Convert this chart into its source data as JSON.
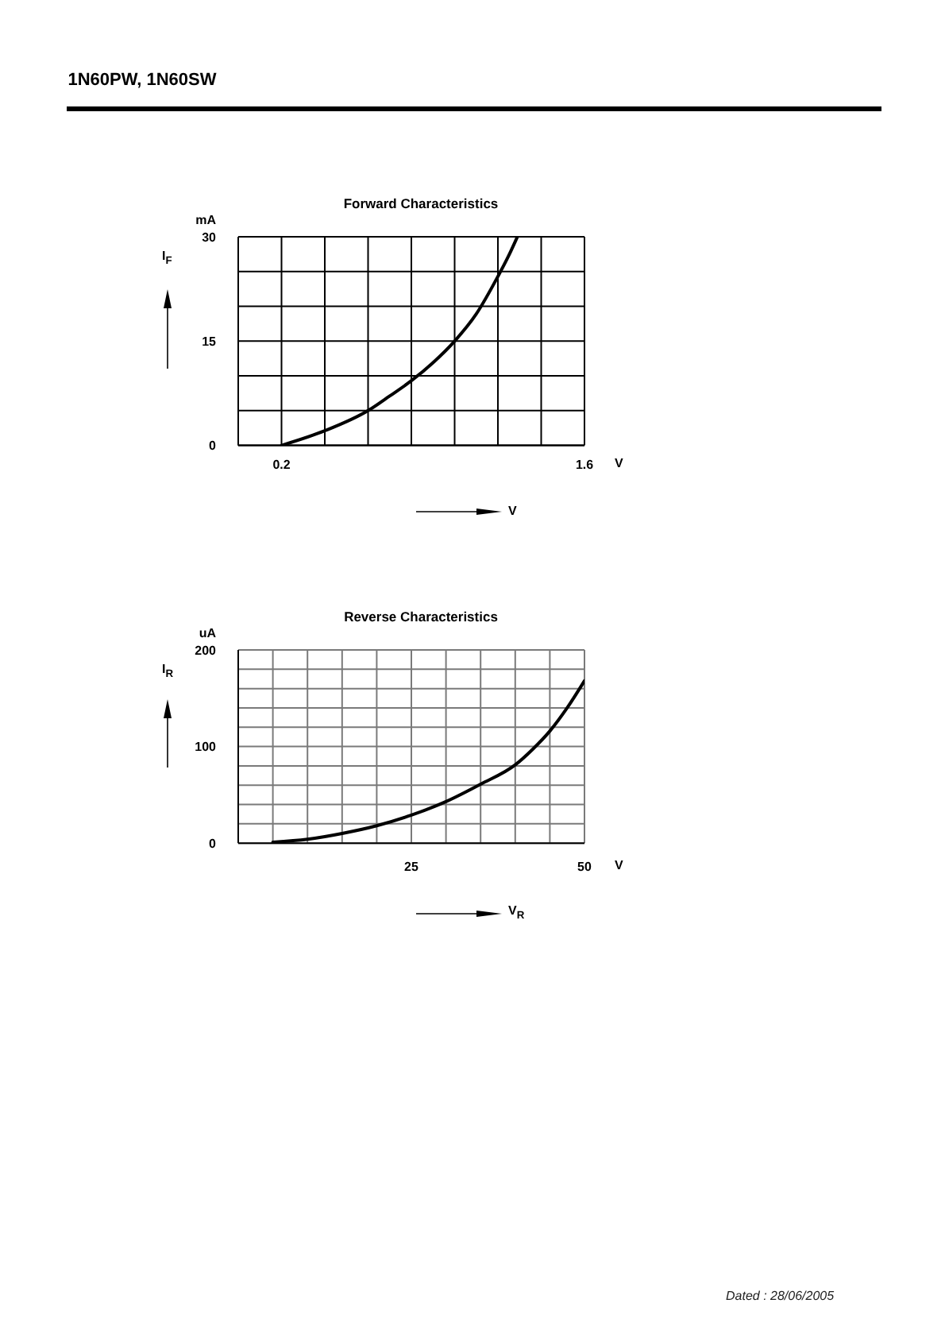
{
  "chart_data": [
    {
      "type": "line",
      "title": "Forward Characteristics",
      "xlabel": "V",
      "ylabel": "I$_{F}$",
      "annotations": [
        "1N60PW, 1N60SW",
        "mA",
        "V"
      ],
      "x": [
        0.2,
        0.4,
        0.6,
        0.7,
        0.8,
        0.9,
        1.0,
        1.1,
        1.2,
        1.25,
        1.29
      ],
      "series": [
        {
          "color": "#000000",
          "values": [
            0,
            2.1,
            5,
            7.1,
            9.3,
            11.9,
            15,
            18.9,
            24.3,
            27.3,
            30
          ]
        }
      ],
      "xlim": [
        0,
        1.6
      ],
      "xticks": [
        {
          "value": 0,
          "label": null
        },
        0.2,
        {
          "value": 0.4,
          "label": null
        },
        {
          "value": 0.6,
          "label": null
        },
        {
          "value": 0.8,
          "label": null
        },
        {
          "value": 1.0,
          "label": null
        },
        {
          "value": 1.2,
          "label": null
        },
        {
          "value": 1.4,
          "label": null
        },
        1.6
      ],
      "ylim": [
        0,
        30
      ],
      "yticks": [
        0,
        {
          "value": 5,
          "label": null
        },
        {
          "value": 10,
          "label": null
        },
        15,
        {
          "value": 20,
          "label": null
        },
        {
          "value": 25,
          "label": null
        },
        30
      ],
      "grid": true
    },
    {
      "type": "line",
      "title": "Reverse Characteristics",
      "xlabel": "V$_{R}$",
      "ylabel": "I$_{R}$",
      "annotations": [
        "uA",
        "V",
        "Dated : 28/06/2005"
      ],
      "x": [
        5,
        10,
        15,
        20,
        25,
        30,
        35,
        40,
        42.5,
        45,
        47.5,
        50
      ],
      "series": [
        {
          "color": "#000000",
          "values": [
            1,
            4,
            10,
            18,
            29,
            43,
            61,
            81,
            97,
            116,
            140,
            168
          ]
        }
      ],
      "xlim": [
        0,
        50
      ],
      "xticks": [
        {
          "value": 0,
          "label": null
        },
        {
          "value": 5,
          "label": null
        },
        {
          "value": 10,
          "label": null
        },
        {
          "value": 15,
          "label": null
        },
        {
          "value": 20,
          "label": null
        },
        25,
        {
          "value": 30,
          "label": null
        },
        {
          "value": 35,
          "label": null
        },
        {
          "value": 40,
          "label": null
        },
        {
          "value": 45,
          "label": null
        },
        50
      ],
      "ylim": [
        0,
        200
      ],
      "yticks": [
        0,
        {
          "value": 20,
          "label": null
        },
        {
          "value": 40,
          "label": null
        },
        {
          "value": 60,
          "label": null
        },
        {
          "value": 80,
          "label": null
        },
        100,
        {
          "value": 120,
          "label": null
        },
        {
          "value": 140,
          "label": null
        },
        {
          "value": 160,
          "label": null
        },
        {
          "value": 180,
          "label": null
        },
        200
      ],
      "grid": true
    }
  ]
}
